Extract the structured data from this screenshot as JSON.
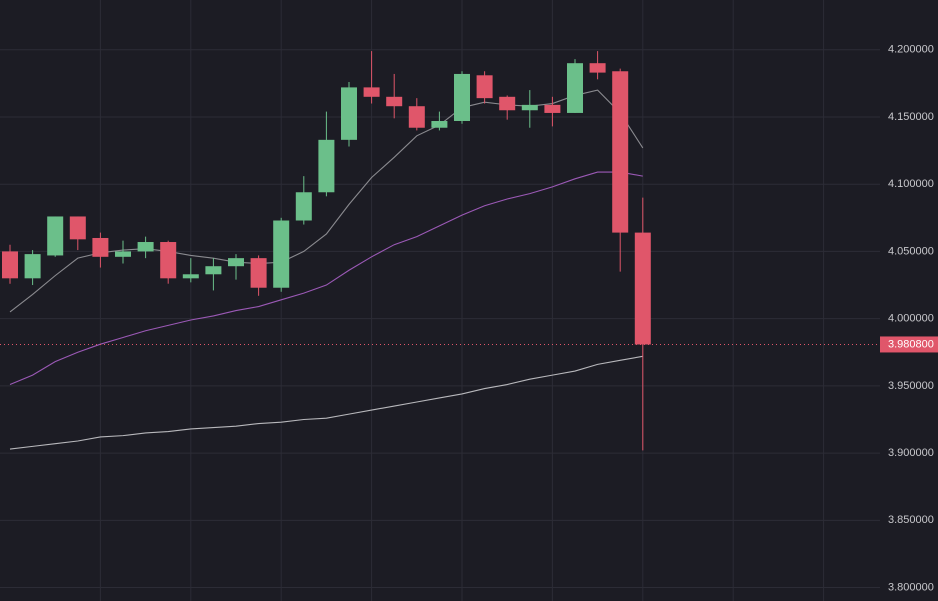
{
  "chart_data": {
    "type": "candlestick",
    "categories": [
      null,
      null,
      null,
      null,
      null,
      null,
      null,
      null,
      null,
      null,
      null,
      null,
      null,
      null,
      null,
      null,
      null,
      null,
      null,
      null,
      null,
      null,
      null,
      null,
      null,
      null,
      null,
      null,
      null
    ],
    "open": [
      4.05,
      4.03,
      4.047,
      4.076,
      4.06,
      4.046,
      4.05,
      4.057,
      4.03,
      4.033,
      4.039,
      4.045,
      4.023,
      4.073,
      4.094,
      4.133,
      4.172,
      4.165,
      4.158,
      4.142,
      4.147,
      4.181,
      4.165,
      4.155,
      4.159,
      4.153,
      4.19,
      4.184,
      4.064
    ],
    "high": [
      4.055,
      4.051,
      4.076,
      4.076,
      4.064,
      4.058,
      4.061,
      4.058,
      4.045,
      4.045,
      4.048,
      4.047,
      4.075,
      4.106,
      4.154,
      4.176,
      4.199,
      4.182,
      4.164,
      4.154,
      4.184,
      4.184,
      4.166,
      4.17,
      4.165,
      4.193,
      4.199,
      4.186,
      4.09
    ],
    "low": [
      4.026,
      4.025,
      4.046,
      4.051,
      4.038,
      4.041,
      4.045,
      4.026,
      4.027,
      4.021,
      4.029,
      4.017,
      4.02,
      4.07,
      4.091,
      4.128,
      4.16,
      4.149,
      4.14,
      4.14,
      4.145,
      4.16,
      4.148,
      4.142,
      4.143,
      4.153,
      4.178,
      4.035,
      3.902
    ],
    "close": [
      4.03,
      4.048,
      4.076,
      4.059,
      4.046,
      4.05,
      4.057,
      4.03,
      4.033,
      4.039,
      4.045,
      4.023,
      4.073,
      4.094,
      4.133,
      4.172,
      4.165,
      4.158,
      4.142,
      4.147,
      4.182,
      4.164,
      4.155,
      4.159,
      4.153,
      4.19,
      4.183,
      4.064,
      3.9808
    ],
    "up_color": "#6bbf8a",
    "down_color": "#e0566a",
    "lines": [
      {
        "color": "#8a8a8f",
        "values": [
          4.005,
          4.018,
          4.032,
          4.045,
          4.049,
          4.051,
          4.052,
          4.05,
          4.047,
          4.045,
          4.042,
          4.041,
          4.042,
          4.05,
          4.063,
          4.085,
          4.105,
          4.12,
          4.136,
          4.144,
          4.157,
          4.161,
          4.159,
          4.158,
          4.16,
          4.166,
          4.17,
          4.153,
          4.127
        ]
      },
      {
        "color": "#9b59b6",
        "values": [
          3.951,
          3.958,
          3.968,
          3.975,
          3.981,
          3.986,
          3.991,
          3.995,
          3.999,
          4.002,
          4.006,
          4.009,
          4.014,
          4.019,
          4.025,
          4.036,
          4.046,
          4.055,
          4.061,
          4.069,
          4.077,
          4.084,
          4.089,
          4.093,
          4.098,
          4.104,
          4.109,
          4.109,
          4.106
        ]
      },
      {
        "color": "#b8b8bc",
        "values": [
          3.903,
          3.905,
          3.907,
          3.909,
          3.912,
          3.913,
          3.915,
          3.916,
          3.918,
          3.919,
          3.92,
          3.922,
          3.923,
          3.925,
          3.926,
          3.929,
          3.932,
          3.935,
          3.938,
          3.941,
          3.944,
          3.948,
          3.951,
          3.955,
          3.958,
          3.961,
          3.966,
          3.969,
          3.972
        ]
      }
    ],
    "ylim": [
      3.79,
      4.237
    ],
    "yticks": [
      {
        "value": 3.8,
        "label": "3.800000"
      },
      {
        "value": 3.85,
        "label": "3.850000"
      },
      {
        "value": 3.9,
        "label": "3.900000"
      },
      {
        "value": 3.95,
        "label": "3.950000"
      },
      {
        "value": 4.0,
        "label": "4.000000"
      },
      {
        "value": 4.05,
        "label": "4.050000"
      },
      {
        "value": 4.1,
        "label": "4.100000"
      },
      {
        "value": 4.15,
        "label": "4.150000"
      },
      {
        "value": 4.2,
        "label": "4.200000"
      }
    ],
    "last_price": {
      "value": 3.9808,
      "label": "3.980800"
    },
    "grid": true
  }
}
